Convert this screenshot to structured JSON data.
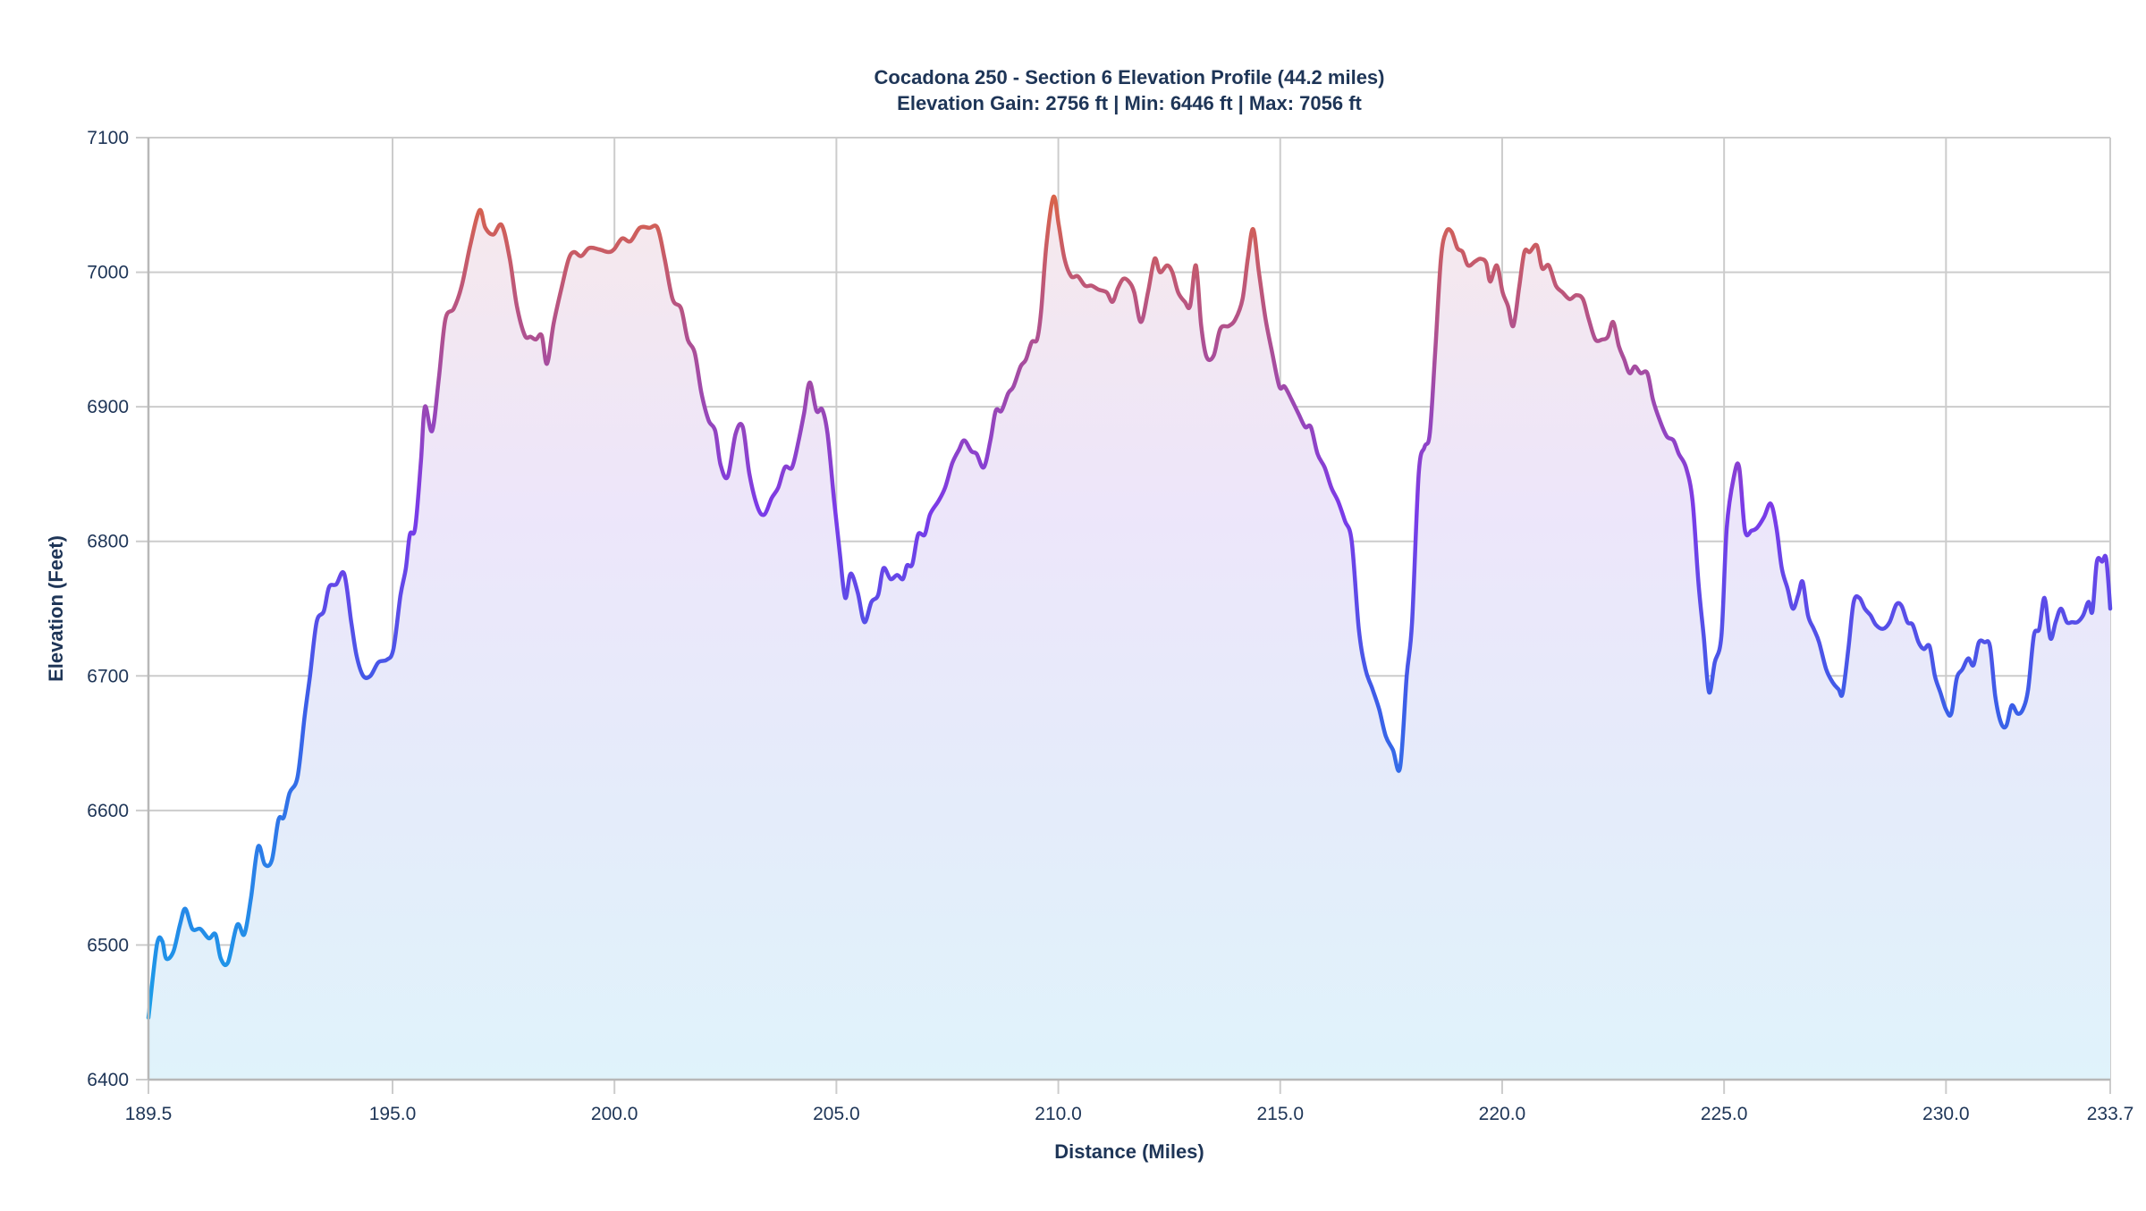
{
  "chart_data": {
    "type": "area",
    "title": "Cocadona 250 - Section 6 Elevation Profile (44.2 miles)",
    "subtitle": "Elevation Gain: 2756 ft | Min: 6446 ft | Max: 7056 ft",
    "xlabel": "Distance (Miles)",
    "ylabel": "Elevation (Feet)",
    "xlim": [
      189.5,
      233.7
    ],
    "ylim": [
      6400,
      7100
    ],
    "x_ticks": [
      "189.5",
      "195.0",
      "200.0",
      "205.0",
      "210.0",
      "215.0",
      "220.0",
      "225.0",
      "230.0",
      "233.7"
    ],
    "y_ticks": [
      "6400",
      "6500",
      "6600",
      "6700",
      "6800",
      "6900",
      "7000",
      "7100"
    ],
    "grid": true,
    "colors": {
      "low": "#1a9fe8",
      "mid": "#7b3ae8",
      "high": "#d9634a",
      "grid": "#cccccc",
      "text": "#1e3557"
    },
    "points": [
      [
        189.5,
        6446
      ],
      [
        189.69,
        6500
      ],
      [
        189.81,
        6503
      ],
      [
        189.9,
        6490
      ],
      [
        190.06,
        6495
      ],
      [
        190.21,
        6515
      ],
      [
        190.33,
        6527
      ],
      [
        190.49,
        6512
      ],
      [
        190.67,
        6512
      ],
      [
        190.86,
        6505
      ],
      [
        191.01,
        6508
      ],
      [
        191.13,
        6490
      ],
      [
        191.29,
        6487
      ],
      [
        191.5,
        6515
      ],
      [
        191.66,
        6508
      ],
      [
        191.81,
        6535
      ],
      [
        191.97,
        6573
      ],
      [
        192.12,
        6560
      ],
      [
        192.28,
        6563
      ],
      [
        192.43,
        6593
      ],
      [
        192.55,
        6595
      ],
      [
        192.68,
        6613
      ],
      [
        192.86,
        6625
      ],
      [
        193.02,
        6670
      ],
      [
        193.14,
        6700
      ],
      [
        193.29,
        6740
      ],
      [
        193.45,
        6748
      ],
      [
        193.57,
        6766
      ],
      [
        193.73,
        6768
      ],
      [
        193.91,
        6776
      ],
      [
        194.07,
        6740
      ],
      [
        194.19,
        6715
      ],
      [
        194.34,
        6700
      ],
      [
        194.5,
        6700
      ],
      [
        194.68,
        6710
      ],
      [
        194.87,
        6712
      ],
      [
        195.02,
        6720
      ],
      [
        195.18,
        6760
      ],
      [
        195.3,
        6780
      ],
      [
        195.39,
        6805
      ],
      [
        195.51,
        6810
      ],
      [
        195.64,
        6860
      ],
      [
        195.73,
        6900
      ],
      [
        195.89,
        6882
      ],
      [
        196.04,
        6920
      ],
      [
        196.19,
        6965
      ],
      [
        196.38,
        6973
      ],
      [
        196.56,
        6990
      ],
      [
        196.75,
        7020
      ],
      [
        196.96,
        7046
      ],
      [
        197.09,
        7033
      ],
      [
        197.27,
        7028
      ],
      [
        197.46,
        7035
      ],
      [
        197.64,
        7010
      ],
      [
        197.8,
        6975
      ],
      [
        197.98,
        6953
      ],
      [
        198.11,
        6952
      ],
      [
        198.23,
        6950
      ],
      [
        198.36,
        6953
      ],
      [
        198.48,
        6932
      ],
      [
        198.63,
        6962
      ],
      [
        198.82,
        6990
      ],
      [
        198.97,
        7010
      ],
      [
        199.09,
        7015
      ],
      [
        199.25,
        7012
      ],
      [
        199.43,
        7018
      ],
      [
        199.65,
        7017
      ],
      [
        199.86,
        7015
      ],
      [
        199.99,
        7017
      ],
      [
        200.17,
        7025
      ],
      [
        200.36,
        7023
      ],
      [
        200.57,
        7033
      ],
      [
        200.79,
        7033
      ],
      [
        200.97,
        7033
      ],
      [
        201.13,
        7010
      ],
      [
        201.31,
        6980
      ],
      [
        201.5,
        6973
      ],
      [
        201.65,
        6950
      ],
      [
        201.81,
        6940
      ],
      [
        201.96,
        6910
      ],
      [
        202.12,
        6890
      ],
      [
        202.27,
        6882
      ],
      [
        202.39,
        6857
      ],
      [
        202.55,
        6848
      ],
      [
        202.73,
        6880
      ],
      [
        202.89,
        6885
      ],
      [
        203.04,
        6850
      ],
      [
        203.23,
        6825
      ],
      [
        203.38,
        6820
      ],
      [
        203.54,
        6832
      ],
      [
        203.69,
        6840
      ],
      [
        203.84,
        6855
      ],
      [
        204.0,
        6855
      ],
      [
        204.15,
        6875
      ],
      [
        204.27,
        6895
      ],
      [
        204.4,
        6918
      ],
      [
        204.55,
        6897
      ],
      [
        204.68,
        6898
      ],
      [
        204.8,
        6880
      ],
      [
        204.95,
        6830
      ],
      [
        205.08,
        6790
      ],
      [
        205.2,
        6758
      ],
      [
        205.32,
        6776
      ],
      [
        205.48,
        6762
      ],
      [
        205.63,
        6740
      ],
      [
        205.79,
        6755
      ],
      [
        205.94,
        6760
      ],
      [
        206.06,
        6780
      ],
      [
        206.22,
        6772
      ],
      [
        206.37,
        6775
      ],
      [
        206.5,
        6772
      ],
      [
        206.59,
        6782
      ],
      [
        206.71,
        6783
      ],
      [
        206.84,
        6805
      ],
      [
        206.99,
        6805
      ],
      [
        207.11,
        6820
      ],
      [
        207.3,
        6830
      ],
      [
        207.45,
        6840
      ],
      [
        207.61,
        6858
      ],
      [
        207.76,
        6868
      ],
      [
        207.88,
        6875
      ],
      [
        208.04,
        6867
      ],
      [
        208.16,
        6865
      ],
      [
        208.32,
        6855
      ],
      [
        208.47,
        6875
      ],
      [
        208.59,
        6897
      ],
      [
        208.72,
        6897
      ],
      [
        208.87,
        6910
      ],
      [
        208.99,
        6915
      ],
      [
        209.15,
        6930
      ],
      [
        209.27,
        6935
      ],
      [
        209.4,
        6948
      ],
      [
        209.52,
        6950
      ],
      [
        209.61,
        6970
      ],
      [
        209.73,
        7020
      ],
      [
        209.89,
        7056
      ],
      [
        210.01,
        7035
      ],
      [
        210.14,
        7010
      ],
      [
        210.29,
        6997
      ],
      [
        210.44,
        6997
      ],
      [
        210.6,
        6990
      ],
      [
        210.75,
        6990
      ],
      [
        210.91,
        6987
      ],
      [
        211.09,
        6985
      ],
      [
        211.22,
        6978
      ],
      [
        211.34,
        6988
      ],
      [
        211.46,
        6995
      ],
      [
        211.59,
        6993
      ],
      [
        211.71,
        6985
      ],
      [
        211.86,
        6963
      ],
      [
        212.02,
        6985
      ],
      [
        212.17,
        7010
      ],
      [
        212.29,
        7000
      ],
      [
        212.45,
        7005
      ],
      [
        212.57,
        7000
      ],
      [
        212.7,
        6985
      ],
      [
        212.85,
        6978
      ],
      [
        212.97,
        6975
      ],
      [
        213.1,
        7005
      ],
      [
        213.22,
        6960
      ],
      [
        213.34,
        6937
      ],
      [
        213.5,
        6938
      ],
      [
        213.65,
        6958
      ],
      [
        213.84,
        6960
      ],
      [
        213.99,
        6965
      ],
      [
        214.15,
        6980
      ],
      [
        214.27,
        7010
      ],
      [
        214.39,
        7032
      ],
      [
        214.52,
        7000
      ],
      [
        214.67,
        6965
      ],
      [
        214.82,
        6940
      ],
      [
        214.98,
        6915
      ],
      [
        215.1,
        6915
      ],
      [
        215.26,
        6905
      ],
      [
        215.41,
        6895
      ],
      [
        215.56,
        6885
      ],
      [
        215.69,
        6885
      ],
      [
        215.84,
        6865
      ],
      [
        216.0,
        6855
      ],
      [
        216.15,
        6840
      ],
      [
        216.3,
        6830
      ],
      [
        216.46,
        6815
      ],
      [
        216.61,
        6800
      ],
      [
        216.77,
        6735
      ],
      [
        216.92,
        6705
      ],
      [
        217.08,
        6690
      ],
      [
        217.23,
        6675
      ],
      [
        217.38,
        6655
      ],
      [
        217.54,
        6645
      ],
      [
        217.7,
        6632
      ],
      [
        217.85,
        6700
      ],
      [
        217.97,
        6740
      ],
      [
        218.12,
        6850
      ],
      [
        218.25,
        6870
      ],
      [
        218.37,
        6880
      ],
      [
        218.49,
        6940
      ],
      [
        218.62,
        7010
      ],
      [
        218.74,
        7030
      ],
      [
        218.86,
        7030
      ],
      [
        218.99,
        7018
      ],
      [
        219.11,
        7015
      ],
      [
        219.23,
        7005
      ],
      [
        219.39,
        7008
      ],
      [
        219.51,
        7010
      ],
      [
        219.64,
        7007
      ],
      [
        219.73,
        6993
      ],
      [
        219.88,
        7005
      ],
      [
        220.01,
        6985
      ],
      [
        220.13,
        6975
      ],
      [
        220.25,
        6960
      ],
      [
        220.38,
        6988
      ],
      [
        220.5,
        7015
      ],
      [
        220.62,
        7015
      ],
      [
        220.78,
        7020
      ],
      [
        220.9,
        7003
      ],
      [
        221.05,
        7005
      ],
      [
        221.21,
        6990
      ],
      [
        221.36,
        6985
      ],
      [
        221.52,
        6980
      ],
      [
        221.67,
        6983
      ],
      [
        221.82,
        6980
      ],
      [
        221.95,
        6965
      ],
      [
        222.1,
        6950
      ],
      [
        222.25,
        6950
      ],
      [
        222.38,
        6952
      ],
      [
        222.5,
        6963
      ],
      [
        222.63,
        6945
      ],
      [
        222.75,
        6935
      ],
      [
        222.87,
        6925
      ],
      [
        222.99,
        6930
      ],
      [
        223.12,
        6925
      ],
      [
        223.27,
        6925
      ],
      [
        223.4,
        6905
      ],
      [
        223.55,
        6890
      ],
      [
        223.71,
        6878
      ],
      [
        223.86,
        6875
      ],
      [
        223.98,
        6865
      ],
      [
        224.14,
        6855
      ],
      [
        224.29,
        6830
      ],
      [
        224.42,
        6770
      ],
      [
        224.54,
        6730
      ],
      [
        224.66,
        6688
      ],
      [
        224.79,
        6710
      ],
      [
        224.94,
        6730
      ],
      [
        225.06,
        6810
      ],
      [
        225.22,
        6848
      ],
      [
        225.34,
        6855
      ],
      [
        225.47,
        6808
      ],
      [
        225.62,
        6808
      ],
      [
        225.74,
        6810
      ],
      [
        225.9,
        6818
      ],
      [
        226.05,
        6828
      ],
      [
        226.18,
        6810
      ],
      [
        226.3,
        6780
      ],
      [
        226.43,
        6765
      ],
      [
        226.55,
        6750
      ],
      [
        226.67,
        6760
      ],
      [
        226.77,
        6770
      ],
      [
        226.89,
        6745
      ],
      [
        227.02,
        6735
      ],
      [
        227.14,
        6725
      ],
      [
        227.3,
        6705
      ],
      [
        227.45,
        6695
      ],
      [
        227.58,
        6690
      ],
      [
        227.67,
        6687
      ],
      [
        227.8,
        6720
      ],
      [
        227.92,
        6755
      ],
      [
        228.05,
        6758
      ],
      [
        228.17,
        6750
      ],
      [
        228.3,
        6745
      ],
      [
        228.42,
        6738
      ],
      [
        228.58,
        6735
      ],
      [
        228.73,
        6740
      ],
      [
        228.88,
        6753
      ],
      [
        229.0,
        6752
      ],
      [
        229.13,
        6740
      ],
      [
        229.25,
        6738
      ],
      [
        229.38,
        6725
      ],
      [
        229.5,
        6720
      ],
      [
        229.63,
        6722
      ],
      [
        229.75,
        6700
      ],
      [
        229.87,
        6688
      ],
      [
        230.0,
        6675
      ],
      [
        230.12,
        6672
      ],
      [
        230.24,
        6698
      ],
      [
        230.37,
        6705
      ],
      [
        230.5,
        6713
      ],
      [
        230.62,
        6708
      ],
      [
        230.74,
        6725
      ],
      [
        230.87,
        6725
      ],
      [
        230.99,
        6722
      ],
      [
        231.11,
        6685
      ],
      [
        231.24,
        6665
      ],
      [
        231.36,
        6663
      ],
      [
        231.48,
        6678
      ],
      [
        231.61,
        6672
      ],
      [
        231.73,
        6675
      ],
      [
        231.85,
        6690
      ],
      [
        231.98,
        6730
      ],
      [
        232.1,
        6735
      ],
      [
        232.22,
        6758
      ],
      [
        232.35,
        6728
      ],
      [
        232.47,
        6740
      ],
      [
        232.59,
        6750
      ],
      [
        232.72,
        6740
      ],
      [
        232.84,
        6740
      ],
      [
        232.96,
        6740
      ],
      [
        233.09,
        6745
      ],
      [
        233.21,
        6755
      ],
      [
        233.3,
        6748
      ],
      [
        233.4,
        6785
      ],
      [
        233.52,
        6785
      ],
      [
        233.61,
        6787
      ],
      [
        233.7,
        6750
      ]
    ]
  }
}
